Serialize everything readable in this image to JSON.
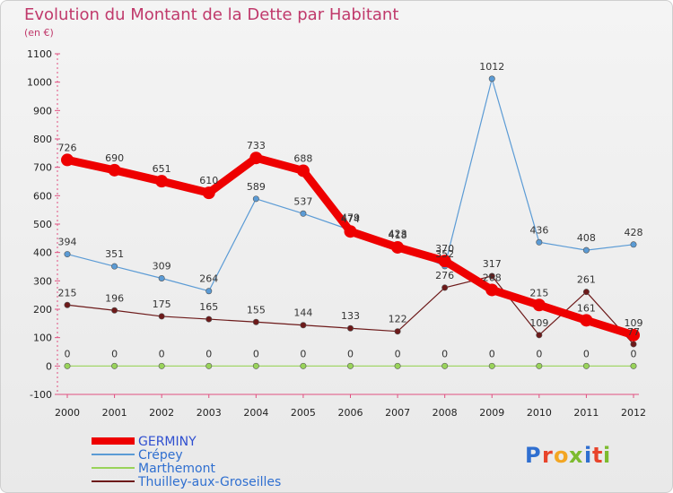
{
  "chart_data": {
    "type": "line",
    "title": "Evolution du Montant de la Dette par Habitant",
    "subtitle": "(en €)",
    "x": [
      2000,
      2001,
      2002,
      2003,
      2004,
      2005,
      2006,
      2007,
      2008,
      2009,
      2010,
      2011,
      2012
    ],
    "ylim": [
      -100,
      1100
    ],
    "yticks": [
      -100,
      0,
      100,
      200,
      300,
      400,
      500,
      600,
      700,
      800,
      900,
      1000,
      1100
    ],
    "grid": false,
    "legend_position": "bottom",
    "series": [
      {
        "name": "GERMINY",
        "color": "#ee0000",
        "values": [
          726,
          690,
          651,
          610,
          733,
          688,
          474,
          418,
          370,
          268,
          215,
          161,
          109
        ]
      },
      {
        "name": "Crépey",
        "color": "#5b9bd5",
        "values": [
          394,
          351,
          309,
          264,
          589,
          537,
          479,
          423,
          352,
          1012,
          436,
          408,
          428
        ]
      },
      {
        "name": "Marthemont",
        "color": "#99d35a",
        "values": [
          0,
          0,
          0,
          0,
          0,
          0,
          0,
          0,
          0,
          0,
          0,
          0,
          0
        ]
      },
      {
        "name": "Thuilley-aux-Groseilles",
        "color": "#6d1a1a",
        "values": [
          215,
          196,
          175,
          165,
          155,
          144,
          133,
          122,
          276,
          317,
          109,
          261,
          77
        ]
      }
    ]
  },
  "brand": {
    "text": "Proxiti",
    "letters": [
      "P",
      "r",
      "o",
      "x",
      "i",
      "t",
      "i"
    ],
    "colors": [
      "#2f6fd0",
      "#e8442b",
      "#f3a623",
      "#7dbb2f",
      "#2f6fd0",
      "#e8442b",
      "#7dbb2f"
    ]
  }
}
